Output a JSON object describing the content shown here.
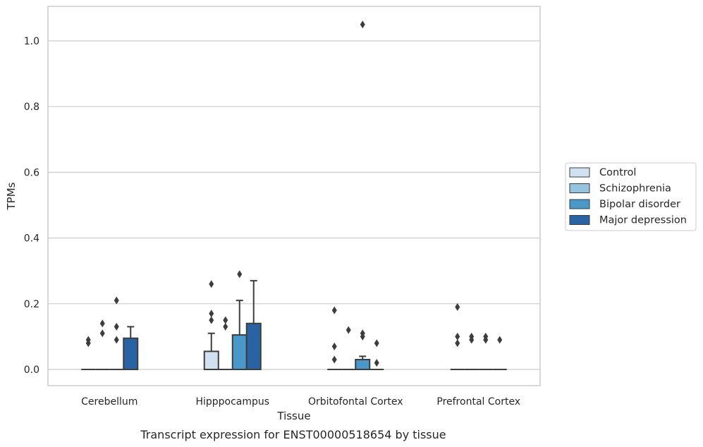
{
  "chart_data": {
    "type": "box",
    "xlabel": "Tissue",
    "ylabel": "TPMs",
    "caption": "Transcript expression for ENST00000518654 by tissue",
    "ylim": [
      -0.05,
      1.1
    ],
    "yticks": [
      0.0,
      0.2,
      0.4,
      0.6,
      0.8,
      1.0
    ],
    "ytick_labels": [
      "0.0",
      "0.2",
      "0.4",
      "0.6",
      "0.8",
      "1.0"
    ],
    "grid": "horizontal",
    "legend_position": "right",
    "categories": [
      "Cerebellum",
      "Hipppocampus",
      "Orbitofontal Cortex",
      "Prefrontal Cortex"
    ],
    "series": [
      {
        "name": "Control",
        "color": "#d0e1f2",
        "boxes": [
          {
            "q1": 0,
            "median": 0,
            "q3": 0,
            "whisker_low": 0,
            "whisker_high": 0,
            "outliers": [
              0.08,
              0.09
            ]
          },
          {
            "q1": 0,
            "median": 0,
            "q3": 0.055,
            "whisker_low": 0,
            "whisker_high": 0.11,
            "outliers": [
              0.15,
              0.17,
              0.26
            ]
          },
          {
            "q1": 0,
            "median": 0,
            "q3": 0,
            "whisker_low": 0,
            "whisker_high": 0,
            "outliers": [
              0.03,
              0.07,
              0.18
            ]
          },
          {
            "q1": 0,
            "median": 0,
            "q3": 0,
            "whisker_low": 0,
            "whisker_high": 0,
            "outliers": [
              0.08,
              0.1,
              0.19
            ]
          }
        ]
      },
      {
        "name": "Schizophrenia",
        "color": "#94c4df",
        "boxes": [
          {
            "q1": 0,
            "median": 0,
            "q3": 0,
            "whisker_low": 0,
            "whisker_high": 0,
            "outliers": [
              0.11,
              0.14
            ]
          },
          {
            "q1": 0,
            "median": 0,
            "q3": 0,
            "whisker_low": 0,
            "whisker_high": 0,
            "outliers": [
              0.13,
              0.15
            ]
          },
          {
            "q1": 0,
            "median": 0,
            "q3": 0,
            "whisker_low": 0,
            "whisker_high": 0,
            "outliers": [
              0.12
            ]
          },
          {
            "q1": 0,
            "median": 0,
            "q3": 0,
            "whisker_low": 0,
            "whisker_high": 0,
            "outliers": [
              0.09,
              0.1
            ]
          }
        ]
      },
      {
        "name": "Bipolar disorder",
        "color": "#4a98c9",
        "boxes": [
          {
            "q1": 0,
            "median": 0,
            "q3": 0,
            "whisker_low": 0,
            "whisker_high": 0,
            "outliers": [
              0.09,
              0.13,
              0.21
            ]
          },
          {
            "q1": 0,
            "median": 0,
            "q3": 0.105,
            "whisker_low": 0,
            "whisker_high": 0.21,
            "outliers": [
              0.29
            ]
          },
          {
            "q1": 0,
            "median": 0,
            "q3": 0.03,
            "whisker_low": 0,
            "whisker_high": 0.04,
            "outliers": [
              0.1,
              0.11,
              1.05
            ]
          },
          {
            "q1": 0,
            "median": 0,
            "q3": 0,
            "whisker_low": 0,
            "whisker_high": 0,
            "outliers": [
              0.09,
              0.1
            ]
          }
        ]
      },
      {
        "name": "Major depression",
        "color": "#2a63a3",
        "boxes": [
          {
            "q1": 0,
            "median": 0,
            "q3": 0.095,
            "whisker_low": 0,
            "whisker_high": 0.13,
            "outliers": []
          },
          {
            "q1": 0,
            "median": 0,
            "q3": 0.14,
            "whisker_low": 0,
            "whisker_high": 0.27,
            "outliers": []
          },
          {
            "q1": 0,
            "median": 0,
            "q3": 0,
            "whisker_low": 0,
            "whisker_high": 0,
            "outliers": [
              0.02,
              0.08
            ]
          },
          {
            "q1": 0,
            "median": 0,
            "q3": 0,
            "whisker_low": 0,
            "whisker_high": 0,
            "outliers": [
              0.09
            ]
          }
        ]
      }
    ]
  }
}
